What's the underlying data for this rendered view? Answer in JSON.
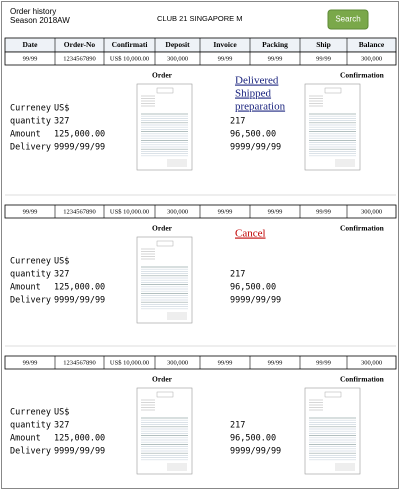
{
  "header": {
    "title": "Order history",
    "season": "Season 2018AW",
    "store": "CLUB 21 SINGAPORE M",
    "search_button": "Search"
  },
  "table_header": [
    "Date",
    "Order-No",
    "Confirmati",
    "Deposit",
    "Invoice",
    "Packing",
    "Ship",
    "Balance"
  ],
  "orders": [
    {
      "row": [
        "99/99",
        "1234567890",
        "US$ 10,000.00",
        "300,000",
        "99/99",
        "99/99",
        "99/99",
        "300,000"
      ],
      "order_label": "Order",
      "confirmation_label": "Confirmation",
      "status": [
        "Delivered",
        "Shipped",
        "preparation"
      ],
      "status_color": "#1a237e",
      "details": {
        "currency": {
          "label": "Curreney",
          "value": "US$"
        },
        "quantity": {
          "label": "quantity",
          "value": "327",
          "confirmed": "217"
        },
        "amount": {
          "label": "Amount",
          "value": "125,000.00",
          "confirmed": "96,500.00"
        },
        "delivery": {
          "label": "Delivery",
          "value": "9999/99/99",
          "confirmed": "9999/99/99"
        }
      }
    },
    {
      "row": [
        "99/99",
        "1234567890",
        "US$ 10,000.00",
        "300,000",
        "99/99",
        "99/99",
        "99/99",
        "300,000"
      ],
      "order_label": "Order",
      "confirmation_label": "Confirmation",
      "status": [
        "Cancel"
      ],
      "status_color": "#c00000",
      "details": {
        "currency": {
          "label": "Curreney",
          "value": "US$"
        },
        "quantity": {
          "label": "quantity",
          "value": "327",
          "confirmed": "217"
        },
        "amount": {
          "label": "Amount",
          "value": "125,000.00",
          "confirmed": "96,500.00"
        },
        "delivery": {
          "label": "Delivery",
          "value": "9999/99/99",
          "confirmed": "9999/99/99"
        }
      }
    },
    {
      "row": [
        "99/99",
        "1234567890",
        "US$ 10,000.00",
        "300,000",
        "99/99",
        "99/99",
        "99/99",
        "300,000"
      ],
      "order_label": "Order",
      "confirmation_label": "Confirmation",
      "details": {
        "currency": {
          "label": "Curreney",
          "value": "US$"
        },
        "quantity": {
          "label": "quantity",
          "value": "327",
          "confirmed": "217"
        },
        "amount": {
          "label": "Amount",
          "value": "125,000.00",
          "confirmed": "96,500.00"
        },
        "delivery": {
          "label": "Delivery",
          "value": "9999/99/99",
          "confirmed": "9999/99/99"
        }
      }
    }
  ]
}
